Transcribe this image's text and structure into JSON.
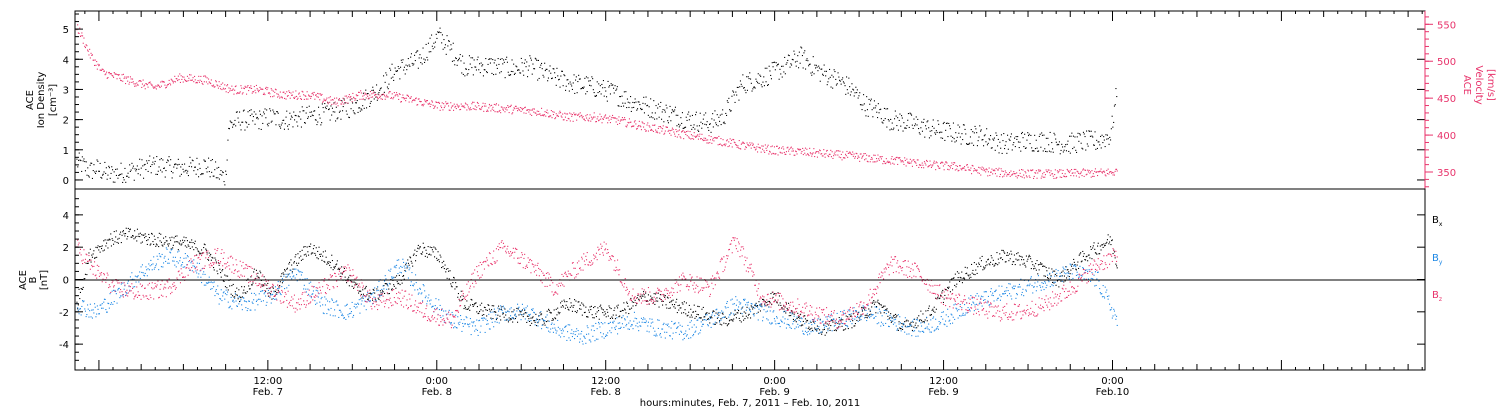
{
  "colors": {
    "black": "#000000",
    "red": "#e8336b",
    "blue": "#1e88e5",
    "axis": "#000000"
  },
  "chart_data": [
    {
      "type": "scatter",
      "panel": "top",
      "ylabel_left": [
        "ACE",
        "Ion Density",
        "[cm⁻³]"
      ],
      "ylabel_right": [
        "ACE",
        "Velocity",
        "[km/s]"
      ],
      "ylim_left": [
        -0.3,
        5.6
      ],
      "yticks_left": [
        0,
        1,
        2,
        3,
        4,
        5
      ],
      "ylim_right": [
        327,
        568
      ],
      "yticks_right": [
        350,
        400,
        450,
        500,
        550
      ],
      "series": [
        {
          "axis": "left",
          "color": "#000000",
          "spread": 0.35,
          "values_x": [
            0,
            0.1,
            0.2,
            0.3,
            0.5,
            0.8,
            1.2,
            1.6,
            2.0,
            2.2,
            2.3,
            2.35,
            2.5,
            2.8,
            3.0,
            3.2,
            3.5,
            3.8,
            4.0,
            4.2,
            4.4,
            4.6,
            4.8,
            4.9,
            5.0,
            5.3,
            5.6,
            6.0,
            6.4,
            6.8,
            7.0,
            7.4,
            7.7,
            8.0,
            8.3,
            8.6,
            8.9,
            9.2,
            9.5,
            9.8,
            10.0,
            10.3,
            10.6,
            10.9,
            11.2,
            11.5,
            11.8,
            12.0,
            12.2,
            12.4,
            12.6,
            12.9,
            13.2,
            13.5,
            13.8,
            14.0,
            14.2,
            14.4,
            14.6,
            14.8,
            15.0,
            15.3,
            15.6,
            15.8,
            16.0,
            16.1
          ],
          "values_y": [
            0.6,
            0.5,
            0.3,
            0.4,
            0.2,
            0.3,
            0.5,
            0.4,
            0.5,
            0.2,
            0.1,
            1.8,
            2.0,
            2.0,
            2.1,
            2.0,
            2.1,
            2.2,
            2.3,
            2.4,
            2.6,
            2.9,
            3.3,
            3.6,
            3.7,
            4.0,
            4.8,
            3.8,
            3.8,
            3.7,
            3.8,
            3.4,
            3.2,
            3.1,
            2.9,
            2.6,
            2.4,
            2.2,
            2.0,
            1.9,
            2.1,
            3.2,
            3.4,
            3.7,
            4.1,
            3.6,
            3.3,
            3.0,
            2.5,
            2.3,
            2.0,
            1.9,
            1.7,
            1.6,
            1.5,
            1.5,
            1.3,
            1.2,
            1.3,
            1.3,
            1.3,
            1.2,
            1.3,
            1.3,
            1.5,
            3.0
          ]
        },
        {
          "axis": "right",
          "color": "#e8336b",
          "spread": 6,
          "values_x": [
            0,
            0.1,
            0.2,
            0.4,
            0.8,
            1.2,
            1.6,
            2.0,
            2.4,
            2.8,
            3.2,
            3.6,
            4.0,
            4.4,
            4.8,
            5.2,
            5.6,
            6.0,
            6.4,
            6.8,
            7.2,
            7.6,
            8.0,
            8.4,
            8.8,
            9.2,
            9.6,
            10.0,
            10.4,
            10.8,
            11.2,
            11.6,
            12.0,
            12.4,
            12.8,
            13.2,
            13.6,
            14.0,
            14.4,
            14.8,
            15.2,
            15.6,
            16.0,
            16.1
          ],
          "values_y": [
            548,
            530,
            510,
            485,
            475,
            465,
            478,
            475,
            462,
            462,
            455,
            455,
            445,
            455,
            455,
            448,
            440,
            440,
            438,
            435,
            432,
            425,
            425,
            420,
            412,
            405,
            398,
            392,
            385,
            380,
            378,
            375,
            372,
            368,
            365,
            360,
            358,
            352,
            349,
            348,
            348,
            349,
            350,
            351
          ]
        }
      ]
    },
    {
      "type": "scatter",
      "panel": "bottom",
      "ylabel_left": [
        "ACE",
        "B",
        "[nT]"
      ],
      "ylim": [
        -5.6,
        5.6
      ],
      "yticks": [
        -4,
        -2,
        0,
        2,
        4
      ],
      "legend": [
        {
          "label": "B",
          "sub": "x",
          "color": "#000000"
        },
        {
          "label": "B",
          "sub": "y",
          "color": "#1e88e5"
        },
        {
          "label": "B",
          "sub": "z",
          "color": "#e8336b"
        }
      ],
      "series": [
        {
          "name": "Bx",
          "color": "#000000",
          "spread": 0.45,
          "values_x": [
            0,
            0.2,
            0.5,
            0.8,
            1.2,
            1.6,
            2.0,
            2.3,
            2.5,
            2.8,
            3.0,
            3.3,
            3.6,
            4.0,
            4.3,
            4.6,
            5.0,
            5.3,
            5.6,
            6.0,
            6.4,
            6.8,
            7.2,
            7.6,
            8.0,
            8.4,
            8.8,
            9.2,
            9.6,
            10.0,
            10.4,
            10.8,
            11.2,
            11.6,
            12.0,
            12.4,
            12.8,
            13.2,
            13.6,
            14.0,
            14.4,
            14.8,
            15.2,
            15.6,
            16.0,
            16.1
          ],
          "values_y": [
            -1.5,
            1.5,
            2.5,
            2.8,
            2.5,
            2.3,
            1.8,
            0.0,
            -1.0,
            0.5,
            -1.0,
            0.8,
            2.0,
            1.0,
            -0.5,
            -1.0,
            0.0,
            2.0,
            1.5,
            -1.5,
            -2.0,
            -2.2,
            -2.5,
            -1.5,
            -2.0,
            -2.0,
            -1.0,
            -1.5,
            -2.0,
            -2.5,
            -2.0,
            -1.0,
            -2.5,
            -3.0,
            -2.5,
            -1.5,
            -3.0,
            -2.0,
            0.0,
            1.0,
            1.5,
            1.0,
            0.0,
            1.5,
            2.5,
            1.0
          ]
        },
        {
          "name": "By",
          "color": "#1e88e5",
          "spread": 0.55,
          "values_x": [
            0,
            0.3,
            0.6,
            1.0,
            1.4,
            1.8,
            2.2,
            2.6,
            3.0,
            3.4,
            3.8,
            4.2,
            4.6,
            5.0,
            5.4,
            5.8,
            6.2,
            6.6,
            7.0,
            7.4,
            7.8,
            8.2,
            8.6,
            9.0,
            9.4,
            9.8,
            10.2,
            10.6,
            11.0,
            11.4,
            11.8,
            12.2,
            12.6,
            13.0,
            13.4,
            13.8,
            14.2,
            14.6,
            15.0,
            15.4,
            15.8,
            16.1
          ],
          "values_y": [
            -1.5,
            -2.0,
            -1.0,
            0.5,
            1.5,
            1.0,
            -1.0,
            -1.5,
            -1.0,
            0.5,
            -1.5,
            -2.0,
            -1.0,
            1.0,
            -1.0,
            -2.5,
            -3.0,
            -2.0,
            -2.0,
            -3.0,
            -3.5,
            -3.0,
            -2.5,
            -3.0,
            -3.2,
            -2.5,
            -1.5,
            -2.0,
            -2.5,
            -3.0,
            -2.5,
            -2.0,
            -2.5,
            -3.0,
            -2.5,
            -1.5,
            -1.0,
            -0.5,
            0.0,
            0.5,
            0.0,
            -2.5
          ]
        },
        {
          "name": "Bz",
          "color": "#e8336b",
          "spread": 0.55,
          "values_x": [
            0,
            0.3,
            0.6,
            1.0,
            1.4,
            1.8,
            2.2,
            2.6,
            3.0,
            3.4,
            3.8,
            4.2,
            4.6,
            5.0,
            5.4,
            5.8,
            6.2,
            6.6,
            7.0,
            7.4,
            7.8,
            8.2,
            8.6,
            9.0,
            9.4,
            9.8,
            10.2,
            10.6,
            11.0,
            11.4,
            11.8,
            12.2,
            12.6,
            13.0,
            13.4,
            13.8,
            14.2,
            14.6,
            15.0,
            15.4,
            15.8,
            16.1
          ],
          "values_y": [
            2.0,
            0.5,
            -0.5,
            -0.8,
            -0.5,
            1.0,
            1.5,
            0.5,
            -0.5,
            -1.5,
            -0.5,
            0.5,
            -1.5,
            -1.0,
            -2.0,
            -2.5,
            0.5,
            2.0,
            1.0,
            -0.5,
            1.0,
            2.0,
            -1.0,
            -1.0,
            0.0,
            -0.5,
            2.5,
            -1.0,
            -1.5,
            -2.0,
            -2.5,
            -1.5,
            1.0,
            0.5,
            -1.0,
            -1.5,
            -2.0,
            -2.0,
            -1.5,
            -0.5,
            1.0,
            1.5
          ]
        }
      ]
    }
  ],
  "xaxis": {
    "range_hours": [
      -1.7,
      94.2
    ],
    "ticks": [
      {
        "hour": 12,
        "label1": "12:00",
        "label2": "Feb. 7"
      },
      {
        "hour": 24,
        "label1": "0:00",
        "label2": "Feb. 8"
      },
      {
        "hour": 36,
        "label1": "12:00",
        "label2": "Feb. 8"
      },
      {
        "hour": 48,
        "label1": "0:00",
        "label2": "Feb. 9"
      },
      {
        "hour": 60,
        "label1": "12:00",
        "label2": "Feb. 9"
      },
      {
        "hour": 72,
        "label1": "0:00",
        "label2": "Feb.10"
      }
    ],
    "caption": "hours:minutes, Feb.  7, 2011 – Feb. 10, 2011"
  }
}
